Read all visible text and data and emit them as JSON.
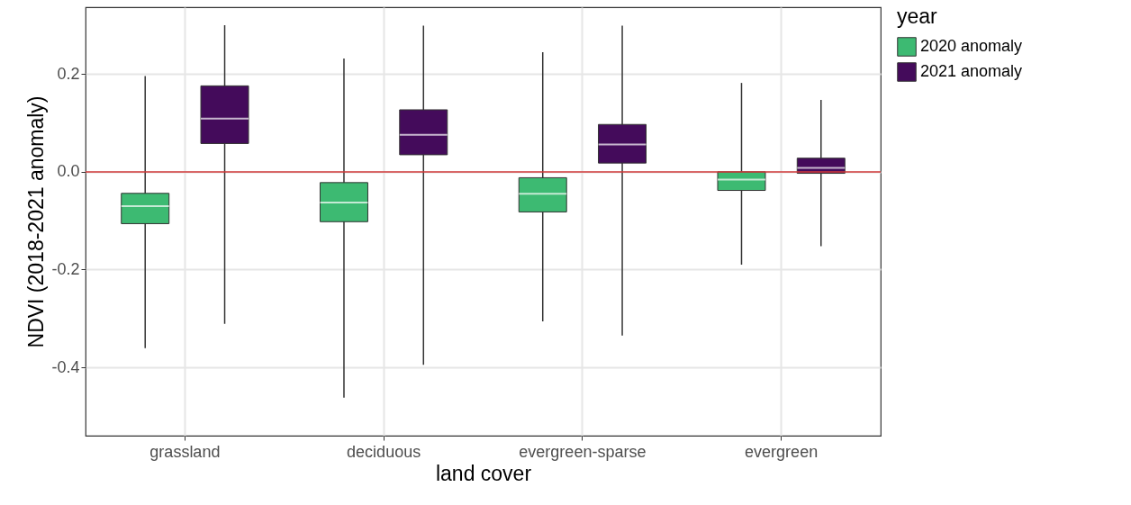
{
  "chart_data": {
    "type": "box",
    "xlabel": "land cover",
    "ylabel": "NDVI (2018-2021 anomaly)",
    "legend_title": "year",
    "legend": "right",
    "grid": true,
    "categories": [
      "grassland",
      "deciduous",
      "evergreen-sparse",
      "evergreen"
    ],
    "series": [
      {
        "name": "2020 anomaly",
        "color": "#3dba72",
        "boxes": [
          {
            "low": -0.361,
            "q1": -0.106,
            "median": -0.07,
            "q3": -0.044,
            "high": 0.196
          },
          {
            "low": -0.462,
            "q1": -0.102,
            "median": -0.063,
            "q3": -0.022,
            "high": 0.232
          },
          {
            "low": -0.306,
            "q1": -0.082,
            "median": -0.045,
            "q3": -0.012,
            "high": 0.245
          },
          {
            "low": -0.19,
            "q1": -0.038,
            "median": -0.016,
            "q3": 0.0,
            "high": 0.182
          }
        ]
      },
      {
        "name": "2021 anomaly",
        "color": "#440b5b",
        "boxes": [
          {
            "low": -0.311,
            "q1": 0.058,
            "median": 0.109,
            "q3": 0.176,
            "high": 0.3
          },
          {
            "low": -0.395,
            "q1": 0.035,
            "median": 0.076,
            "q3": 0.127,
            "high": 0.299
          },
          {
            "low": -0.335,
            "q1": 0.018,
            "median": 0.056,
            "q3": 0.097,
            "high": 0.299
          },
          {
            "low": -0.152,
            "q1": -0.003,
            "median": 0.008,
            "q3": 0.028,
            "high": 0.147
          }
        ]
      }
    ],
    "ylim": [
      -0.54,
      0.337
    ],
    "yticks": [
      -0.4,
      -0.2,
      {
        "value": 0,
        "label": "0.0"
      },
      0.2
    ],
    "ref_lines": [
      {
        "axis": "y",
        "value": 0,
        "color": "#d03a3a"
      }
    ]
  }
}
